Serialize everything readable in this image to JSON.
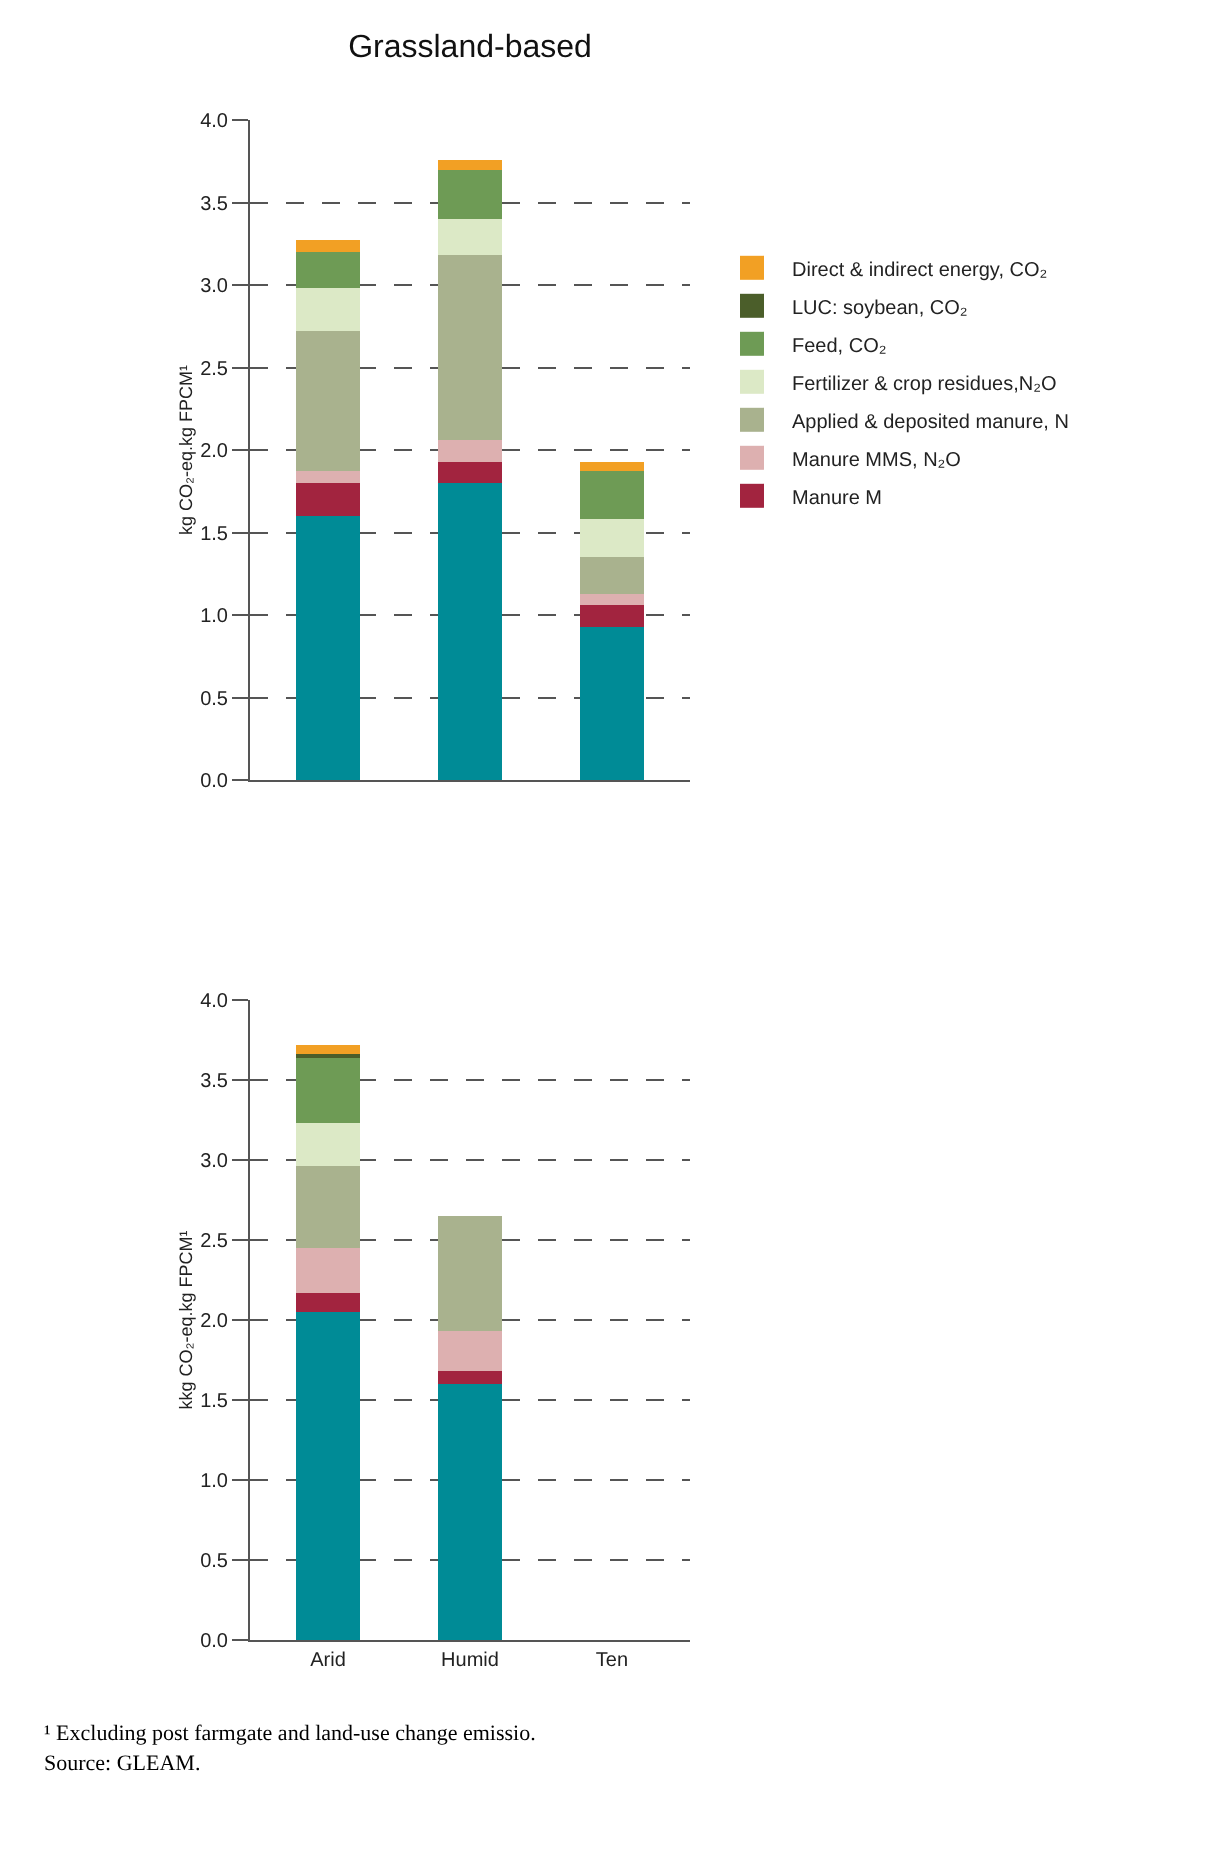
{
  "chart_data": [
    {
      "type": "bar",
      "title": "Grassland-based",
      "ylabel": "kg CO₂-eq.kg FPCM¹",
      "categories": [
        null,
        null,
        null
      ],
      "stacked": true,
      "grid": "y",
      "legend": "right",
      "ylim": [
        0,
        4
      ],
      "yticks": [
        {
          "value": 0,
          "label": "0.0"
        },
        0.5,
        {
          "value": 1,
          "label": "1.0"
        },
        1.5,
        {
          "value": 2,
          "label": "2.0"
        },
        2.5,
        {
          "value": 3,
          "label": "3.0"
        },
        3.5,
        {
          "value": 4,
          "label": "4.0"
        }
      ],
      "series": [
        {
          "color": "#008b96",
          "values": [
            1.6,
            1.8,
            0.93
          ]
        },
        {
          "name": "Manure M",
          "color": "#a2243f",
          "values": [
            0.2,
            0.13,
            0.13
          ]
        },
        {
          "name": "Manure MMS, N₂O",
          "color": "#ddb0b0",
          "values": [
            0.07,
            0.13,
            0.07
          ]
        },
        {
          "name": "Applied & deposited manure, N",
          "color": "#a9b28e",
          "values": [
            0.85,
            1.12,
            0.22
          ]
        },
        {
          "name": "Fertilizer & crop residues,N₂O",
          "color": "#dce9c6",
          "values": [
            0.26,
            0.22,
            0.23
          ]
        },
        {
          "name": "Feed, CO₂",
          "color": "#6e9b55",
          "values": [
            0.22,
            0.3,
            0.29
          ]
        },
        {
          "name": "LUC: soybean, CO₂",
          "color": "#4b5e2a",
          "values": [
            0,
            0,
            0
          ]
        },
        {
          "name": "Direct & indirect energy, CO₂",
          "color": "#f2a024",
          "values": [
            0.07,
            0.06,
            0.06
          ]
        }
      ]
    },
    {
      "type": "bar",
      "ylabel": "kkg CO₂-eq.kg FPCM¹",
      "categories": [
        "Arid",
        "Humid",
        "Ten"
      ],
      "stacked": true,
      "grid": "y",
      "ylim": [
        0,
        4
      ],
      "yticks": [
        {
          "value": 0,
          "label": "0.0"
        },
        0.5,
        {
          "value": 1,
          "label": "1.0"
        },
        1.5,
        {
          "value": 2,
          "label": "2.0"
        },
        2.5,
        {
          "value": 3,
          "label": "3.0"
        },
        3.5,
        {
          "value": 4,
          "label": "4.0"
        }
      ],
      "series": [
        {
          "color": "#008b96",
          "values": [
            2.05,
            1.6,
            null
          ]
        },
        {
          "color": "#a2243f",
          "values": [
            0.12,
            0.08,
            null
          ]
        },
        {
          "color": "#ddb0b0",
          "values": [
            0.28,
            0.25,
            null
          ]
        },
        {
          "color": "#a9b28e",
          "values": [
            0.51,
            0.72,
            null
          ]
        },
        {
          "color": "#dce9c6",
          "values": [
            0.27,
            null,
            null
          ]
        },
        {
          "color": "#6e9b55",
          "values": [
            0.41,
            null,
            null
          ]
        },
        {
          "color": "#4b5e2a",
          "values": [
            0.02,
            null,
            null
          ]
        },
        {
          "color": "#f2a024",
          "values": [
            0.06,
            null,
            null
          ]
        }
      ],
      "annotations": [
        "¹ Excluding post farmgate and land-use change emissio.",
        "Source: GLEAM."
      ]
    }
  ]
}
